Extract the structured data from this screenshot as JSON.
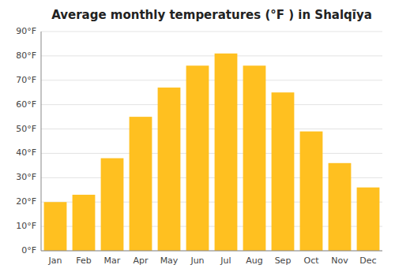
{
  "chart_data": {
    "type": "bar",
    "title": "Average monthly temperatures (°F ) in Shalqīya",
    "categories": [
      "Jan",
      "Feb",
      "Mar",
      "Apr",
      "May",
      "Jun",
      "Jul",
      "Aug",
      "Sep",
      "Oct",
      "Nov",
      "Dec"
    ],
    "values": [
      20,
      23,
      38,
      55,
      67,
      76,
      81,
      76,
      65,
      49,
      36,
      26
    ],
    "color": "#FFC020",
    "ylim": [
      0,
      90
    ],
    "yticks": [
      {
        "value": 0,
        "label": "0°F"
      },
      {
        "value": 10,
        "label": "10°F"
      },
      {
        "value": 20,
        "label": "20°F"
      },
      {
        "value": 30,
        "label": "30°F"
      },
      {
        "value": 40,
        "label": "40°F"
      },
      {
        "value": 50,
        "label": "50°F"
      },
      {
        "value": 60,
        "label": "60°F"
      },
      {
        "value": 70,
        "label": "70°F"
      },
      {
        "value": 80,
        "label": "80°F"
      },
      {
        "value": 90,
        "label": "90°F"
      }
    ],
    "grid": true
  }
}
